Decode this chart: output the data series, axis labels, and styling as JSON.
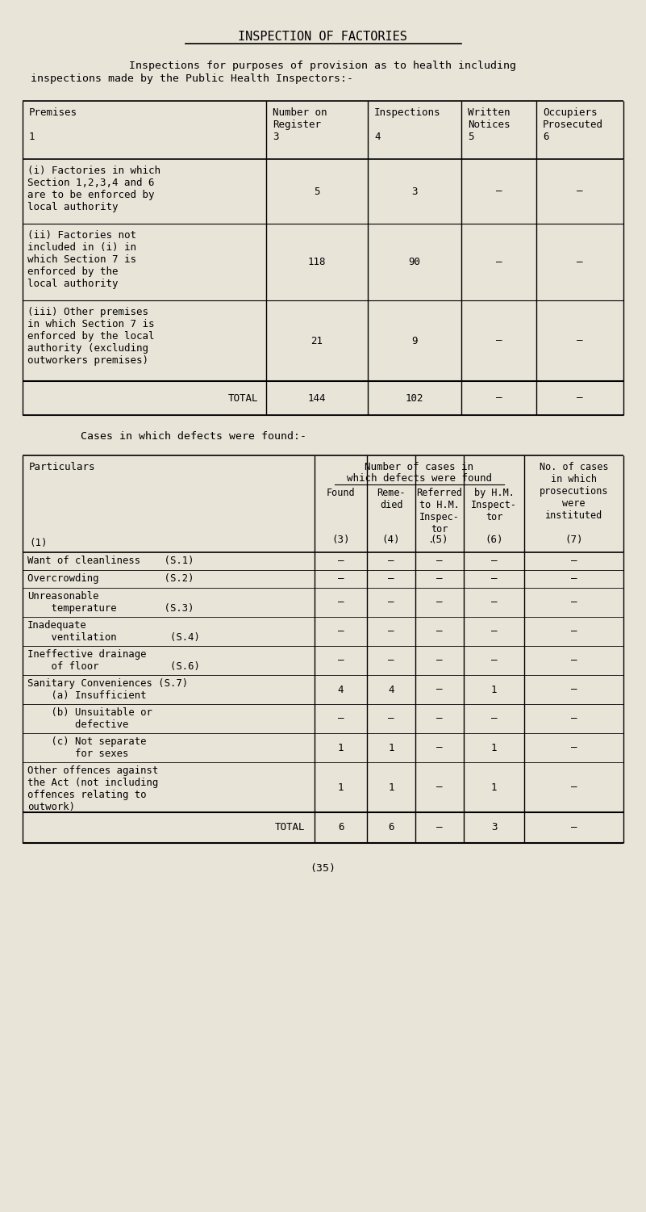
{
  "bg_color": "#e8e4d8",
  "title": "INSPECTION OF FACTORIES",
  "subtitle_line1": "Inspections for purposes of provision as to health including",
  "subtitle_line2": "inspections made by the Public Health Inspectors:-",
  "cases_title": "Cases in which defects were found:-",
  "footer": "(35)"
}
